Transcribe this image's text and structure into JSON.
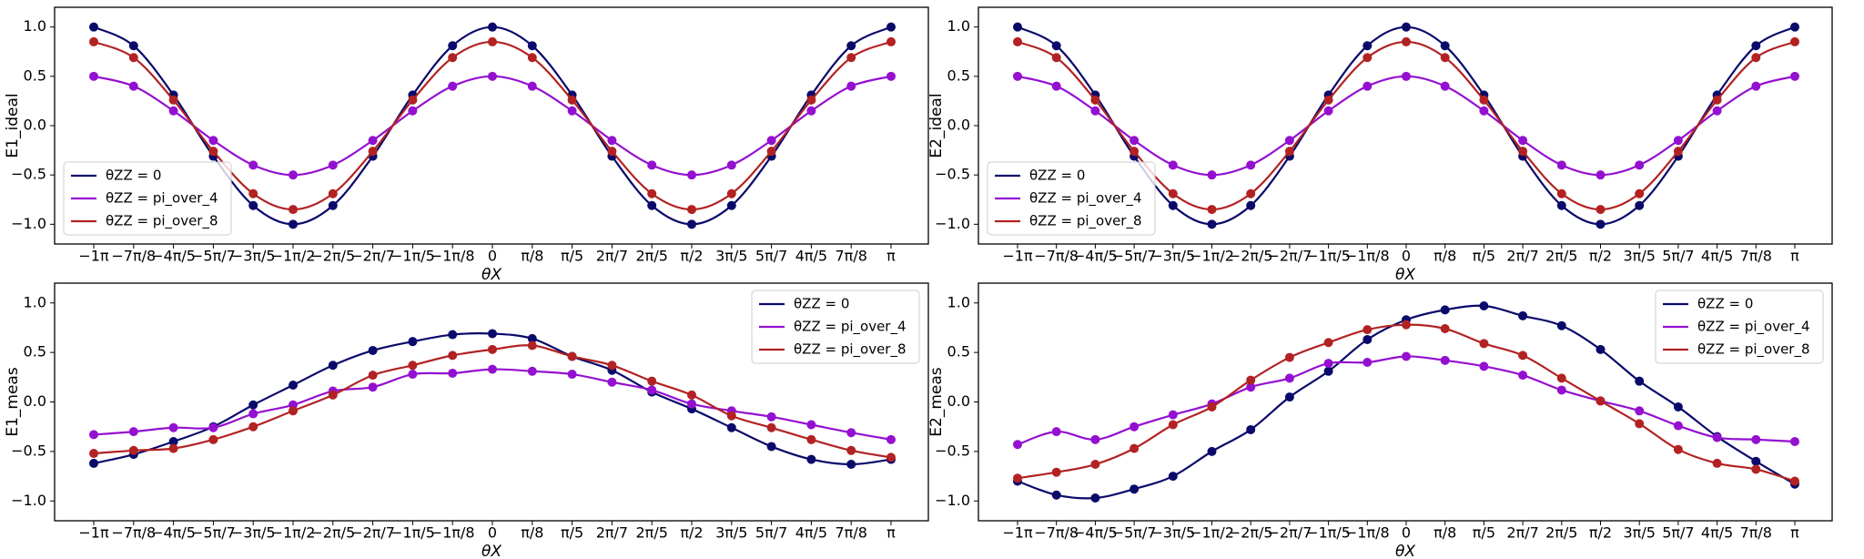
{
  "chart_data": [
    {
      "type": "line",
      "ylabel": "E1_ideal",
      "xlabel": "θX",
      "legend": "lower left",
      "categories": [
        "−1π",
        "−7π/8",
        "−4π/5",
        "−5π/7",
        "−3π/5",
        "−1π/2",
        "−2π/5",
        "−2π/7",
        "−1π/5",
        "−1π/8",
        "0",
        "π/8",
        "π/5",
        "2π/7",
        "2π/5",
        "π/2",
        "3π/5",
        "5π/7",
        "4π/5",
        "7π/8",
        "π"
      ],
      "ylim": [
        -1.2,
        1.2
      ],
      "yticks": [
        {
          "value": -1,
          "label": "−1.0"
        },
        {
          "value": -0.5,
          "label": "−0.5"
        },
        {
          "value": 0,
          "label": "0.0"
        },
        {
          "value": 0.5,
          "label": "0.5"
        },
        {
          "value": 1,
          "label": "1.0"
        }
      ],
      "series": [
        {
          "name": "θZZ = 0",
          "color": "#0a0a6b",
          "values": [
            1.0,
            0.81,
            0.31,
            -0.31,
            -0.81,
            -1.0,
            -0.81,
            -0.31,
            0.31,
            0.81,
            1.0,
            0.81,
            0.31,
            -0.31,
            -0.81,
            -1.0,
            -0.81,
            -0.31,
            0.31,
            0.81,
            1.0
          ]
        },
        {
          "name": "θZZ = pi_over_4",
          "color": "#9410d0",
          "values": [
            0.5,
            0.4,
            0.15,
            -0.15,
            -0.4,
            -0.5,
            -0.4,
            -0.15,
            0.15,
            0.4,
            0.5,
            0.4,
            0.15,
            -0.15,
            -0.4,
            -0.5,
            -0.4,
            -0.15,
            0.15,
            0.4,
            0.5
          ]
        },
        {
          "name": "θZZ = pi_over_8",
          "color": "#b22222",
          "values": [
            0.85,
            0.69,
            0.26,
            -0.26,
            -0.69,
            -0.85,
            -0.69,
            -0.26,
            0.26,
            0.69,
            0.85,
            0.69,
            0.26,
            -0.26,
            -0.69,
            -0.85,
            -0.69,
            -0.26,
            0.26,
            0.69,
            0.85
          ]
        }
      ]
    },
    {
      "type": "line",
      "ylabel": "E2_ideal",
      "xlabel": "θX",
      "legend": "lower left",
      "categories": [
        "−1π",
        "−7π/8",
        "−4π/5",
        "−5π/7",
        "−3π/5",
        "−1π/2",
        "−2π/5",
        "−2π/7",
        "−1π/5",
        "−1π/8",
        "0",
        "π/8",
        "π/5",
        "2π/7",
        "2π/5",
        "π/2",
        "3π/5",
        "5π/7",
        "4π/5",
        "7π/8",
        "π"
      ],
      "ylim": [
        -1.2,
        1.2
      ],
      "yticks": [
        {
          "value": -1,
          "label": "−1.0"
        },
        {
          "value": -0.5,
          "label": "−0.5"
        },
        {
          "value": 0,
          "label": "0.0"
        },
        {
          "value": 0.5,
          "label": "0.5"
        },
        {
          "value": 1,
          "label": "1.0"
        }
      ],
      "series": [
        {
          "name": "θZZ = 0",
          "color": "#0a0a6b",
          "values": [
            1.0,
            0.81,
            0.31,
            -0.31,
            -0.81,
            -1.0,
            -0.81,
            -0.31,
            0.31,
            0.81,
            1.0,
            0.81,
            0.31,
            -0.31,
            -0.81,
            -1.0,
            -0.81,
            -0.31,
            0.31,
            0.81,
            1.0
          ]
        },
        {
          "name": "θZZ = pi_over_4",
          "color": "#9410d0",
          "values": [
            0.5,
            0.4,
            0.15,
            -0.15,
            -0.4,
            -0.5,
            -0.4,
            -0.15,
            0.15,
            0.4,
            0.5,
            0.4,
            0.15,
            -0.15,
            -0.4,
            -0.5,
            -0.4,
            -0.15,
            0.15,
            0.4,
            0.5
          ]
        },
        {
          "name": "θZZ = pi_over_8",
          "color": "#b22222",
          "values": [
            0.85,
            0.69,
            0.26,
            -0.26,
            -0.69,
            -0.85,
            -0.69,
            -0.26,
            0.26,
            0.69,
            0.85,
            0.69,
            0.26,
            -0.26,
            -0.69,
            -0.85,
            -0.69,
            -0.26,
            0.26,
            0.69,
            0.85
          ]
        }
      ]
    },
    {
      "type": "line",
      "ylabel": "E1_meas",
      "xlabel": "θX",
      "legend": "upper right",
      "categories": [
        "−1π",
        "−7π/8",
        "−4π/5",
        "−5π/7",
        "−3π/5",
        "−1π/2",
        "−2π/5",
        "−2π/7",
        "−1π/5",
        "−1π/8",
        "0",
        "π/8",
        "π/5",
        "2π/7",
        "2π/5",
        "π/2",
        "3π/5",
        "5π/7",
        "4π/5",
        "7π/8",
        "π"
      ],
      "ylim": [
        -1.2,
        1.2
      ],
      "yticks": [
        {
          "value": -1,
          "label": "−1.0"
        },
        {
          "value": -0.5,
          "label": "−0.5"
        },
        {
          "value": 0,
          "label": "0.0"
        },
        {
          "value": 0.5,
          "label": "0.5"
        },
        {
          "value": 1,
          "label": "1.0"
        }
      ],
      "series": [
        {
          "name": "θZZ = 0",
          "color": "#0a0a6b",
          "values": [
            -0.62,
            -0.53,
            -0.4,
            -0.25,
            -0.03,
            0.17,
            0.37,
            0.52,
            0.61,
            0.68,
            0.69,
            0.64,
            0.46,
            0.32,
            0.1,
            -0.07,
            -0.26,
            -0.45,
            -0.58,
            -0.63,
            -0.58
          ]
        },
        {
          "name": "θZZ = pi_over_4",
          "color": "#9410d0",
          "values": [
            -0.33,
            -0.3,
            -0.26,
            -0.26,
            -0.12,
            -0.03,
            0.11,
            0.15,
            0.28,
            0.29,
            0.33,
            0.31,
            0.28,
            0.2,
            0.12,
            -0.02,
            -0.09,
            -0.15,
            -0.23,
            -0.31,
            -0.38
          ]
        },
        {
          "name": "θZZ = pi_over_8",
          "color": "#b22222",
          "values": [
            -0.52,
            -0.49,
            -0.47,
            -0.38,
            -0.25,
            -0.09,
            0.07,
            0.27,
            0.37,
            0.47,
            0.53,
            0.57,
            0.46,
            0.37,
            0.21,
            0.07,
            -0.14,
            -0.26,
            -0.38,
            -0.49,
            -0.56
          ]
        }
      ]
    },
    {
      "type": "line",
      "ylabel": "E2_meas",
      "xlabel": "θX",
      "legend": "upper right",
      "categories": [
        "−1π",
        "−7π/8",
        "−4π/5",
        "−5π/7",
        "−3π/5",
        "−1π/2",
        "−2π/5",
        "−2π/7",
        "−1π/5",
        "−1π/8",
        "0",
        "π/8",
        "π/5",
        "2π/7",
        "2π/5",
        "π/2",
        "3π/5",
        "5π/7",
        "4π/5",
        "7π/8",
        "π"
      ],
      "ylim": [
        -1.2,
        1.2
      ],
      "yticks": [
        {
          "value": -1,
          "label": "−1.0"
        },
        {
          "value": -0.5,
          "label": "−0.5"
        },
        {
          "value": 0,
          "label": "0.0"
        },
        {
          "value": 0.5,
          "label": "0.5"
        },
        {
          "value": 1,
          "label": "1.0"
        }
      ],
      "series": [
        {
          "name": "θZZ = 0",
          "color": "#0a0a6b",
          "values": [
            -0.8,
            -0.94,
            -0.97,
            -0.88,
            -0.75,
            -0.5,
            -0.28,
            0.05,
            0.31,
            0.63,
            0.83,
            0.93,
            0.97,
            0.87,
            0.77,
            0.53,
            0.21,
            -0.05,
            -0.35,
            -0.6,
            -0.83
          ]
        },
        {
          "name": "θZZ = pi_over_4",
          "color": "#9410d0",
          "values": [
            -0.43,
            -0.3,
            -0.38,
            -0.25,
            -0.13,
            -0.02,
            0.15,
            0.24,
            0.39,
            0.4,
            0.46,
            0.42,
            0.36,
            0.27,
            0.12,
            0.01,
            -0.09,
            -0.24,
            -0.36,
            -0.38,
            -0.4
          ]
        },
        {
          "name": "θZZ = pi_over_8",
          "color": "#b22222",
          "values": [
            -0.77,
            -0.71,
            -0.63,
            -0.47,
            -0.23,
            -0.05,
            0.22,
            0.45,
            0.6,
            0.73,
            0.78,
            0.74,
            0.59,
            0.47,
            0.24,
            0.01,
            -0.22,
            -0.48,
            -0.62,
            -0.68,
            -0.8
          ]
        }
      ]
    }
  ]
}
